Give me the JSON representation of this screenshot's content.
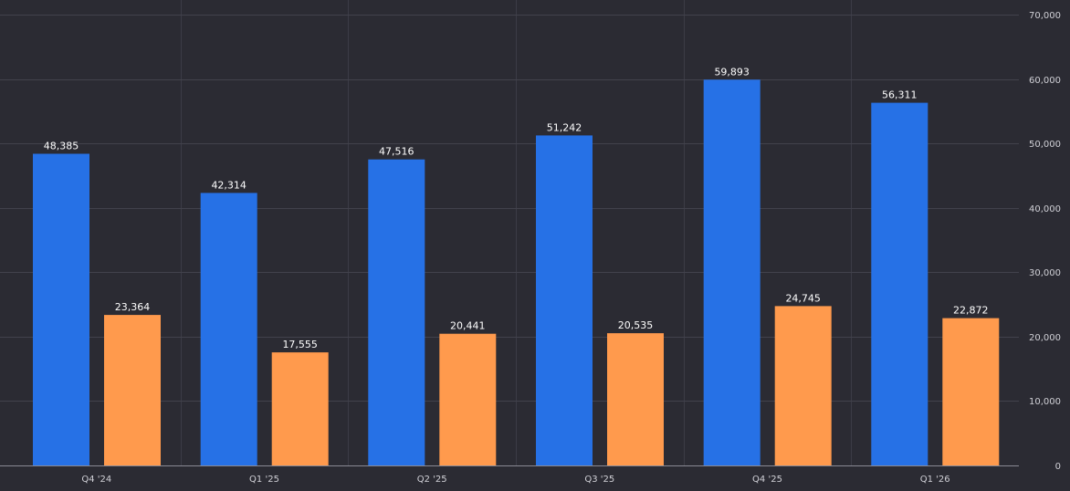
{
  "chart_data": {
    "type": "bar",
    "categories": [
      "Q4 '24",
      "Q1 '25",
      "Q2 '25",
      "Q3 '25",
      "Q4 '25",
      "Q1 '26"
    ],
    "series": [
      {
        "color": "#2671e6",
        "values": [
          48385,
          42314,
          47516,
          51242,
          59893,
          56311
        ],
        "labels": [
          "48,385",
          "42,314",
          "47,516",
          "51,242",
          "59,893",
          "56,311"
        ]
      },
      {
        "color": "#ff9a4d",
        "values": [
          23364,
          17555,
          20441,
          20535,
          24745,
          22872
        ],
        "labels": [
          "23,364",
          "17,555",
          "20,441",
          "20,535",
          "24,745",
          "22,872"
        ]
      }
    ],
    "y_ticks": [
      0,
      10000,
      20000,
      30000,
      40000,
      50000,
      60000,
      70000
    ],
    "y_tick_labels": [
      "0",
      "10,000",
      "20,000",
      "30,000",
      "40,000",
      "50,000",
      "60,000",
      "70,000"
    ],
    "ylim": [
      0,
      70000
    ],
    "y_axis_position": "right",
    "grid": true,
    "legend": false,
    "title": "",
    "xlabel": "",
    "ylabel": ""
  },
  "colors": {
    "background": "#2b2b33",
    "grid": "#42424c"
  }
}
